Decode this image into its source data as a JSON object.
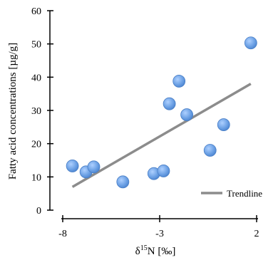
{
  "chart_data": {
    "type": "scatter",
    "xlabel": "δ15N [‰]",
    "ylabel": "Fatty acid concentrations  [µg/g]",
    "xlim": [
      -8,
      2
    ],
    "ylim": [
      0,
      60
    ],
    "x_ticks": [
      -8,
      -3,
      2
    ],
    "y_ticks": [
      0,
      10,
      20,
      30,
      40,
      50,
      60
    ],
    "grid": false,
    "legend_position": "bottom-right",
    "series": [
      {
        "type": "scatter",
        "color": "#6fa3e6",
        "points": [
          {
            "x": -7.5,
            "y": 13.3
          },
          {
            "x": -6.8,
            "y": 11.5
          },
          {
            "x": -6.4,
            "y": 13.0
          },
          {
            "x": -4.9,
            "y": 8.5
          },
          {
            "x": -3.3,
            "y": 11.0
          },
          {
            "x": -2.8,
            "y": 11.8
          },
          {
            "x": -2.5,
            "y": 32.0
          },
          {
            "x": -2.0,
            "y": 38.8
          },
          {
            "x": -1.6,
            "y": 28.7
          },
          {
            "x": -0.4,
            "y": 18.0
          },
          {
            "x": 0.3,
            "y": 25.7
          },
          {
            "x": 1.7,
            "y": 50.3
          }
        ]
      },
      {
        "name": "Trendline",
        "type": "line",
        "color": "#8c8c8c",
        "points": [
          {
            "x": -7.5,
            "y": 7.0
          },
          {
            "x": 1.7,
            "y": 38.0
          }
        ]
      }
    ]
  }
}
